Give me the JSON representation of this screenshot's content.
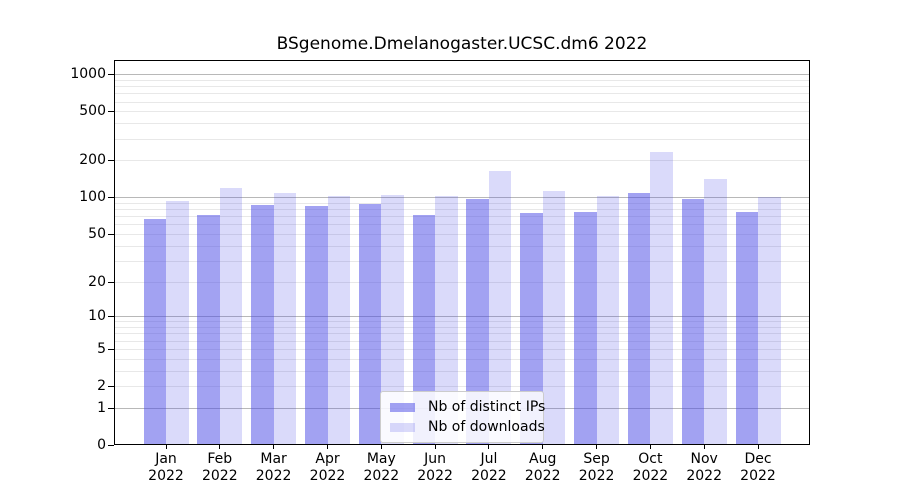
{
  "chart_data": {
    "type": "bar",
    "title": "BSgenome.Dmelanogaster.UCSC.dm6 2022",
    "categories": [
      "Jan",
      "Feb",
      "Mar",
      "Apr",
      "May",
      "Jun",
      "Jul",
      "Aug",
      "Sep",
      "Oct",
      "Nov",
      "Dec"
    ],
    "year": "2022",
    "series": [
      {
        "name": "Nb of distinct IPs",
        "color": "#4646e6",
        "alpha": 0.5,
        "values": [
          67,
          71,
          87,
          85,
          88,
          72,
          97,
          75,
          76,
          108,
          96,
          76
        ]
      },
      {
        "name": "Nb of downloads",
        "color": "#4646e6",
        "alpha": 0.2,
        "values": [
          93,
          118,
          109,
          103,
          104,
          103,
          163,
          113,
          103,
          235,
          140,
          101
        ]
      }
    ],
    "y_scale": "log1p",
    "y_ticks": [
      0,
      1,
      2,
      5,
      10,
      20,
      50,
      100,
      200,
      500,
      1000
    ],
    "ylim": [
      0,
      1300
    ],
    "grid": {
      "enabled": true,
      "major_color": "#b8b8b8",
      "minor_color": "#e8e8e8"
    },
    "legend_position": "lower center",
    "axis_color": "#000000",
    "background_color": "#ffffff"
  }
}
